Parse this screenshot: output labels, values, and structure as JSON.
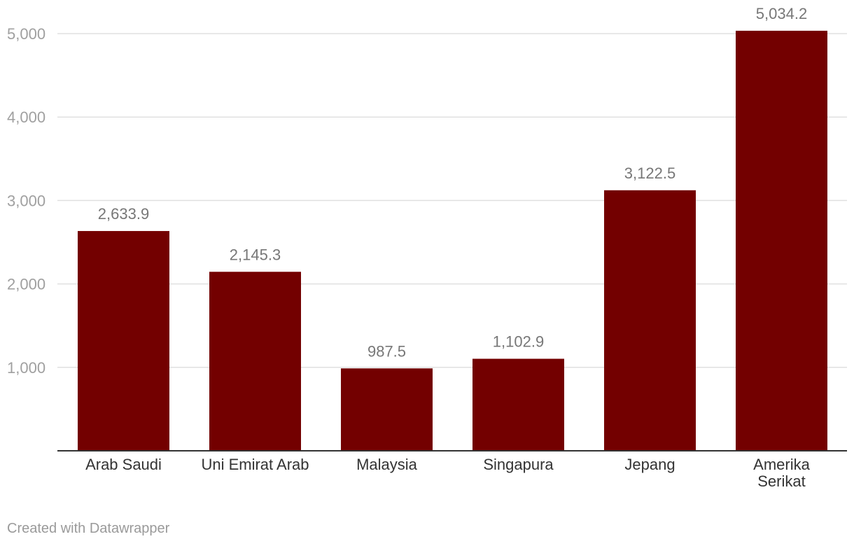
{
  "chart_data": {
    "type": "bar",
    "categories": [
      "Arab Saudi",
      "Uni Emirat Arab",
      "Malaysia",
      "Singapura",
      "Jepang",
      "Amerika Serikat"
    ],
    "values": [
      2633.9,
      2145.3,
      987.5,
      1102.9,
      3122.5,
      5034.2
    ],
    "value_labels": [
      "2,633.9",
      "2,145.3",
      "987.5",
      "1,102.9",
      "3,122.5",
      "5,034.2"
    ],
    "category_lines": [
      [
        "Arab Saudi"
      ],
      [
        "Uni Emirat Arab"
      ],
      [
        "Malaysia"
      ],
      [
        "Singapura"
      ],
      [
        "Jepang"
      ],
      [
        "Amerika",
        "Serikat"
      ]
    ],
    "yticks": [
      1000,
      2000,
      3000,
      4000,
      5000
    ],
    "ytick_labels": [
      "1,000",
      "2,000",
      "3,000",
      "4,000",
      "5,000"
    ],
    "ylim": [
      0,
      5000
    ],
    "grid": true,
    "title": "",
    "xlabel": "",
    "ylabel": ""
  },
  "colors": {
    "bar": "#730000",
    "grid": "#e0e0e0",
    "axis": "#333333"
  },
  "footer": {
    "credit": "Created with Datawrapper"
  }
}
